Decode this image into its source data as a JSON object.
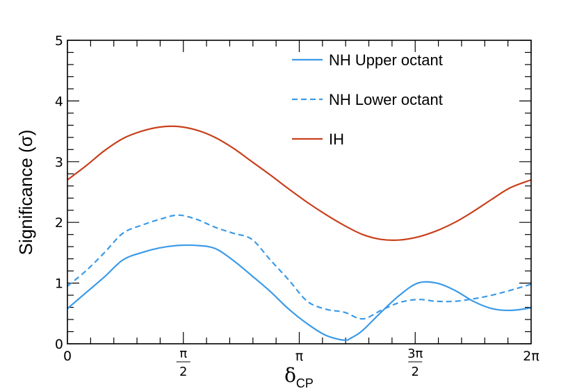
{
  "chart_data": {
    "type": "line",
    "xlabel": "δ",
    "xlabel_subscript": "CP",
    "ylabel": "Significance (σ)",
    "xlim": [
      0,
      6.283185
    ],
    "ylim": [
      0,
      5
    ],
    "y_ticks": [
      "0",
      "1",
      "2",
      "3",
      "4",
      "5"
    ],
    "x_ticks": [
      {
        "value": 0,
        "label": "0"
      },
      {
        "value": 1.570796,
        "num": "π",
        "den": "2"
      },
      {
        "value": 3.141593,
        "label": "π"
      },
      {
        "value": 4.712389,
        "num": "3π",
        "den": "2"
      },
      {
        "value": 6.283185,
        "label": "2π"
      }
    ],
    "legend_position": "top-right",
    "series": [
      {
        "name": "NH Upper octant",
        "color": "#3a9ae8",
        "style": "solid",
        "x": [
          0,
          0.25,
          0.5,
          0.75,
          1.0,
          1.25,
          1.5,
          1.75,
          2.0,
          2.25,
          2.5,
          2.75,
          3.0,
          3.25,
          3.5,
          3.75,
          3.85,
          4.0,
          4.25,
          4.5,
          4.75,
          5.0,
          5.25,
          5.5,
          5.75,
          6.0,
          6.283
        ],
        "y": [
          0.58,
          0.84,
          1.1,
          1.38,
          1.5,
          1.58,
          1.62,
          1.62,
          1.57,
          1.37,
          1.12,
          0.86,
          0.57,
          0.33,
          0.14,
          0.06,
          0.1,
          0.22,
          0.52,
          0.8,
          1.0,
          1.0,
          0.88,
          0.7,
          0.58,
          0.55,
          0.59
        ]
      },
      {
        "name": "NH Lower octant",
        "color": "#3a9ae8",
        "style": "dashed",
        "x": [
          0,
          0.25,
          0.5,
          0.75,
          1.0,
          1.25,
          1.5,
          1.75,
          2.0,
          2.25,
          2.5,
          2.75,
          3.0,
          3.25,
          3.5,
          3.75,
          4.0,
          4.25,
          4.5,
          4.75,
          5.0,
          5.25,
          5.5,
          5.75,
          6.0,
          6.283
        ],
        "y": [
          0.95,
          1.2,
          1.5,
          1.82,
          1.95,
          2.05,
          2.12,
          2.05,
          1.92,
          1.82,
          1.72,
          1.38,
          1.05,
          0.7,
          0.57,
          0.52,
          0.41,
          0.55,
          0.68,
          0.73,
          0.7,
          0.7,
          0.74,
          0.8,
          0.88,
          0.98
        ]
      },
      {
        "name": "IH",
        "color": "#c8401c",
        "style": "solid",
        "x": [
          0,
          0.25,
          0.5,
          0.75,
          1.0,
          1.25,
          1.5,
          1.75,
          2.0,
          2.25,
          2.5,
          2.75,
          3.0,
          3.25,
          3.5,
          3.75,
          4.0,
          4.25,
          4.5,
          4.75,
          5.0,
          5.25,
          5.5,
          5.75,
          6.0,
          6.283
        ],
        "y": [
          2.7,
          2.93,
          3.18,
          3.38,
          3.5,
          3.57,
          3.58,
          3.52,
          3.4,
          3.22,
          3.0,
          2.78,
          2.55,
          2.33,
          2.13,
          1.95,
          1.8,
          1.72,
          1.71,
          1.76,
          1.86,
          2.0,
          2.18,
          2.38,
          2.57,
          2.7
        ]
      }
    ]
  }
}
